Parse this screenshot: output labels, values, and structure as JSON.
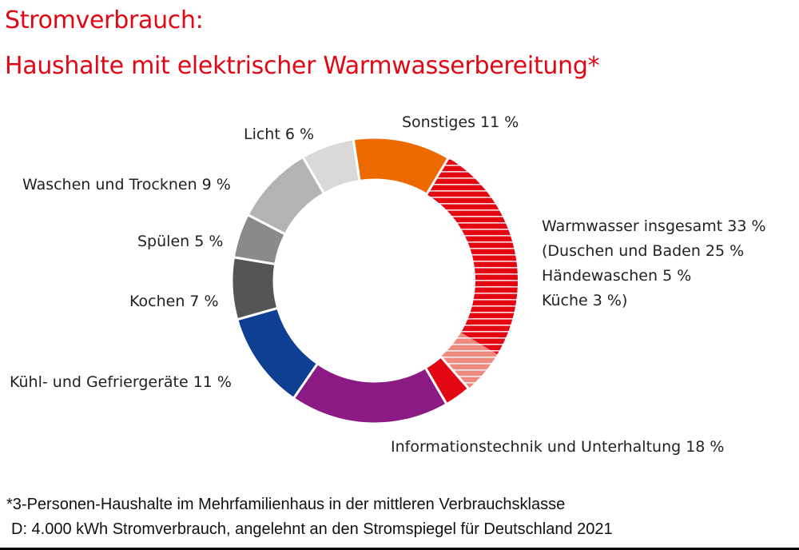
{
  "chart_data": {
    "type": "pie",
    "variant": "donut",
    "title": "Stromverbrauch:",
    "subtitle": "Haushalte mit elektrischer Warmwasserbereitung*",
    "unit": "%",
    "slices": [
      {
        "name": "Duschen und Baden",
        "value": 25,
        "color": "#e30613",
        "pattern": "hatched"
      },
      {
        "name": "Händewaschen",
        "value": 5,
        "color": "#f08a80",
        "pattern": "hatched"
      },
      {
        "name": "Küche",
        "value": 3,
        "color": "#e30613",
        "pattern": "solid"
      },
      {
        "name": "Informationstechnik und Unterhaltung",
        "value": 18,
        "color": "#8b1a84"
      },
      {
        "name": "Kühl- und Gefriergeräte",
        "value": 11,
        "color": "#0f3f93"
      },
      {
        "name": "Kochen",
        "value": 7,
        "color": "#555555"
      },
      {
        "name": "Spülen",
        "value": 5,
        "color": "#8a8a8a"
      },
      {
        "name": "Waschen und Trocknen",
        "value": 9,
        "color": "#b3b3b3"
      },
      {
        "name": "Licht",
        "value": 6,
        "color": "#d9d9d9"
      },
      {
        "name": "Sonstiges",
        "value": 11,
        "color": "#ec6a00"
      }
    ],
    "labels": {
      "sonstiges": "Sonstiges 11 %",
      "licht": "Licht 6 %",
      "waschen": "Waschen und Trocknen 9 %",
      "spuelen": "Spülen 5 %",
      "kochen": "Kochen 7 %",
      "kuehl": "Kühl- und Gefriergeräte 11 %",
      "info": "Informationstechnik und Unterhaltung 18 %",
      "warmwasser": [
        "Warmwasser insgesamt 33 %",
        "(Duschen und Baden 25 %",
        "Händewaschen 5 %",
        "Küche 3 %)"
      ]
    }
  },
  "footnote": {
    "line1": "*3-Personen-Haushalte im Mehrfamilienhaus in der mittleren Verbrauchsklasse",
    "line2": "D: 4.000 kWh Stromverbrauch, angelehnt an den Stromspiegel für Deutschland 2021"
  }
}
